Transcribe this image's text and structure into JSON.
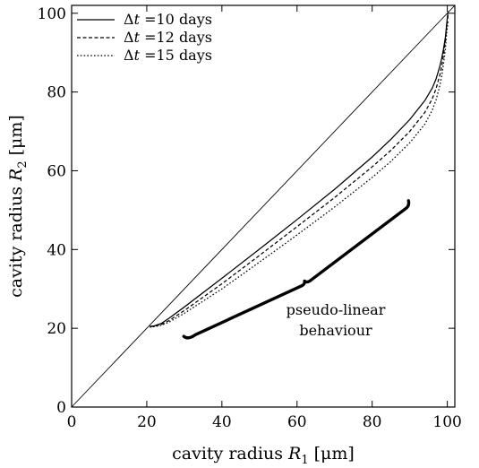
{
  "chart_data": {
    "type": "line",
    "title": "",
    "xlabel": {
      "prefix": "cavity radius ",
      "var": "R",
      "sub": "1",
      "unit": " [μm]"
    },
    "ylabel": {
      "prefix": "cavity radius ",
      "var": "R",
      "sub": "2",
      "unit": " [μm]"
    },
    "xlim": [
      0,
      102
    ],
    "ylim": [
      0,
      102
    ],
    "xticks": [
      0,
      20,
      40,
      60,
      80,
      100
    ],
    "yticks": [
      0,
      20,
      40,
      60,
      80,
      100
    ],
    "xtick_labels": [
      "0",
      "20",
      "40",
      "60",
      "80",
      "100"
    ],
    "ytick_labels": [
      "0",
      "20",
      "40",
      "60",
      "80",
      "100"
    ],
    "grid": false,
    "legend_position": "top-left",
    "reference_line": {
      "x": [
        0,
        102
      ],
      "y": [
        0,
        102
      ]
    },
    "series": [
      {
        "name_var": "Δt",
        "name_value": " =10 days",
        "style": "solid",
        "x": [
          20.8,
          22,
          24,
          26,
          30,
          40,
          50,
          60,
          70,
          80,
          85,
          90,
          94,
          96,
          97,
          98,
          98.5,
          99,
          99.5,
          99.8,
          100.2
        ],
        "y": [
          20.5,
          20.6,
          21.3,
          22.6,
          25.4,
          32.7,
          40.1,
          47.6,
          55.3,
          63.5,
          68,
          73,
          77.8,
          81,
          83.3,
          86.5,
          88.5,
          91,
          94,
          97,
          100.5
        ]
      },
      {
        "name_var": "Δt",
        "name_value": " =12 days",
        "style": "dashed",
        "x": [
          20.8,
          22,
          24,
          26,
          30,
          40,
          50,
          60,
          70,
          80,
          85,
          90,
          94,
          96,
          97,
          98,
          98.5,
          99,
          99.5,
          99.8,
          100.2
        ],
        "y": [
          20.4,
          20.5,
          21,
          22,
          24.5,
          31.3,
          38.5,
          45.8,
          53.2,
          61,
          65.2,
          70,
          74.8,
          78.3,
          80.8,
          84.3,
          86.5,
          89.5,
          93,
          96.5,
          99.5
        ]
      },
      {
        "name_var": "Δt",
        "name_value": " =15 days",
        "style": "dotted",
        "x": [
          20.8,
          22,
          24,
          26,
          30,
          40,
          50,
          60,
          70,
          80,
          85,
          90,
          94,
          96,
          97,
          98,
          98.5,
          99,
          99.5,
          99.8,
          100.2
        ],
        "y": [
          20.3,
          20.4,
          20.8,
          21.6,
          23.8,
          30,
          36.8,
          43.7,
          50.8,
          58.3,
          62.4,
          67.1,
          71.8,
          75.4,
          78,
          81.6,
          84,
          87.2,
          91,
          94.7,
          98
        ]
      }
    ],
    "annotation": {
      "lines": [
        "pseudo-linear",
        "behaviour"
      ],
      "brace_start": [
        31,
        17
      ],
      "brace_mid": [
        62,
        32
      ],
      "brace_end": [
        90,
        51
      ]
    }
  }
}
